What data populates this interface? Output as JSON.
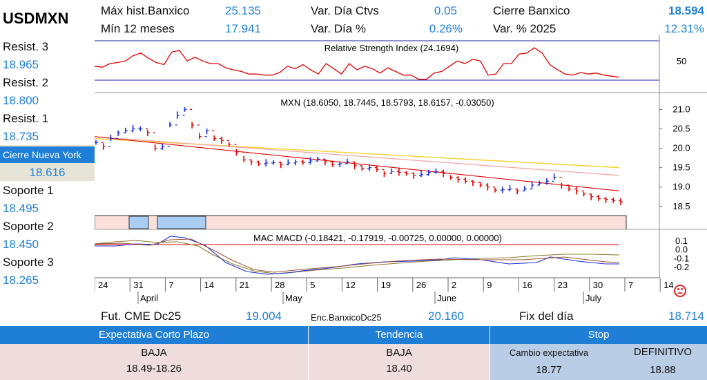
{
  "ticker": "USDMXN",
  "header": {
    "max_hist_label": "Máx hist.Banxico",
    "max_hist_value": "25.135",
    "min_12m_label": "Mín 12 meses",
    "min_12m_value": "17.941",
    "var_dia_ctvs_label": "Var. Día Ctvs",
    "var_dia_ctvs_value": "0.05",
    "var_dia_pct_label": "Var. Día %",
    "var_dia_pct_value": "0.26%",
    "cierre_banxico_label": "Cierre Banxico",
    "cierre_banxico_value": "18.594",
    "var_2025_label": "Var. % 2025",
    "var_2025_value": "12.31%"
  },
  "levels": {
    "resist3_label": "Resist. 3",
    "resist3_value": "18.965",
    "resist2_label": "Resist. 2",
    "resist2_value": "18.800",
    "resist1_label": "Resist. 1",
    "resist1_value": "18.735",
    "ny_label": "Cierre Nueva York",
    "ny_value": "18.616",
    "soporte1_label": "Soporte 1",
    "soporte1_value": "18.495",
    "soporte2_label": "Soporte 2",
    "soporte2_value": "18.450",
    "soporte3_label": "Soporte 3",
    "soporte3_value": "18.265"
  },
  "footer": {
    "fut_label": "Fut. CME Dc25",
    "fut_value": "19.004",
    "enc_label": "Enc.BanxicoDc25",
    "enc_value": "20.160",
    "fix_label": "Fix del día",
    "fix_value": "18.714"
  },
  "table": {
    "col1_head": "Expectativa Corto Plazo",
    "col1_value": "BAJA",
    "col1_range": "18.49-18.26",
    "col2_head": "Tendencia",
    "col2_value": "BAJA",
    "col2_level": "18.40",
    "col3_head": "Stop",
    "col3_sub1": "Cambio expectativa",
    "col3_sub2": "DEFINITIVO",
    "col3_val1": "18.77",
    "col3_val2": "18.88"
  },
  "colors": {
    "accent": "#1f7fd6",
    "down": "#e00000",
    "up": "#1a2fe0",
    "band_pink": "#fbe0dc",
    "band_blue": "#a9cdf3"
  },
  "chart_data": [
    {
      "type": "line",
      "title": "Relative Strength Index (24.1694)",
      "yticks": [
        "50"
      ],
      "values": [
        45,
        43,
        50,
        52,
        55,
        65,
        70,
        60,
        52,
        48,
        72,
        75,
        55,
        62,
        55,
        50,
        50,
        42,
        38,
        35,
        30,
        30,
        28,
        28,
        33,
        45,
        40,
        48,
        38,
        30,
        50,
        40,
        30,
        50,
        38,
        45,
        40,
        32,
        42,
        35,
        28,
        28,
        20,
        20,
        32,
        35,
        45,
        55,
        50,
        58,
        55,
        28,
        30,
        50,
        50,
        68,
        70,
        80,
        70,
        48,
        38,
        30,
        28,
        33,
        30,
        32,
        28,
        26,
        24
      ]
    },
    {
      "type": "bar",
      "title": "MXN (18.6050, 18.7445, 18.5793, 18.6157, -0.03050)",
      "yticks": [
        "21.0",
        "20.5",
        "20.0",
        "19.5",
        "19.0",
        "18.5"
      ],
      "ylim": [
        18.3,
        21.4
      ],
      "ohlc_close": [
        20.15,
        20.05,
        20.25,
        20.4,
        20.45,
        20.5,
        20.5,
        20.4,
        20.0,
        20.05,
        20.6,
        20.85,
        21.0,
        20.6,
        20.3,
        20.45,
        20.25,
        20.2,
        20.1,
        19.9,
        19.7,
        19.65,
        19.6,
        19.62,
        19.63,
        19.58,
        19.62,
        19.65,
        19.63,
        19.67,
        19.72,
        19.65,
        19.58,
        19.6,
        19.65,
        19.55,
        19.48,
        19.5,
        19.45,
        19.35,
        19.4,
        19.38,
        19.35,
        19.3,
        19.32,
        19.38,
        19.4,
        19.35,
        19.25,
        19.2,
        19.15,
        19.12,
        19.05,
        19.0,
        18.92,
        18.93,
        18.95,
        18.9,
        18.95,
        19.05,
        19.1,
        19.15,
        19.25,
        19.05,
        18.95,
        18.9,
        18.82,
        18.75,
        18.7,
        18.68,
        18.65,
        18.62
      ],
      "ma_yellow": [
        20.25,
        19.5
      ],
      "ma_pink": [
        20.3,
        19.3
      ],
      "ma_red": [
        20.3,
        18.9
      ]
    },
    {
      "type": "line",
      "title": "MAC MACD (-0.18421, -0.17919, -0.00725, 0.00000, 0.00000)",
      "yticks": [
        "0.1",
        "0.0",
        "-0.1",
        "-0.2"
      ],
      "ylim": [
        -0.3,
        0.2
      ]
    }
  ],
  "x_axis": {
    "ticks": [
      "24",
      "31",
      "7",
      "14",
      "21",
      "28",
      "5",
      "12",
      "19",
      "26",
      "2",
      "9",
      "16",
      "23",
      "30",
      "7",
      "14"
    ],
    "months": [
      "April",
      "May",
      "June",
      "July"
    ]
  }
}
